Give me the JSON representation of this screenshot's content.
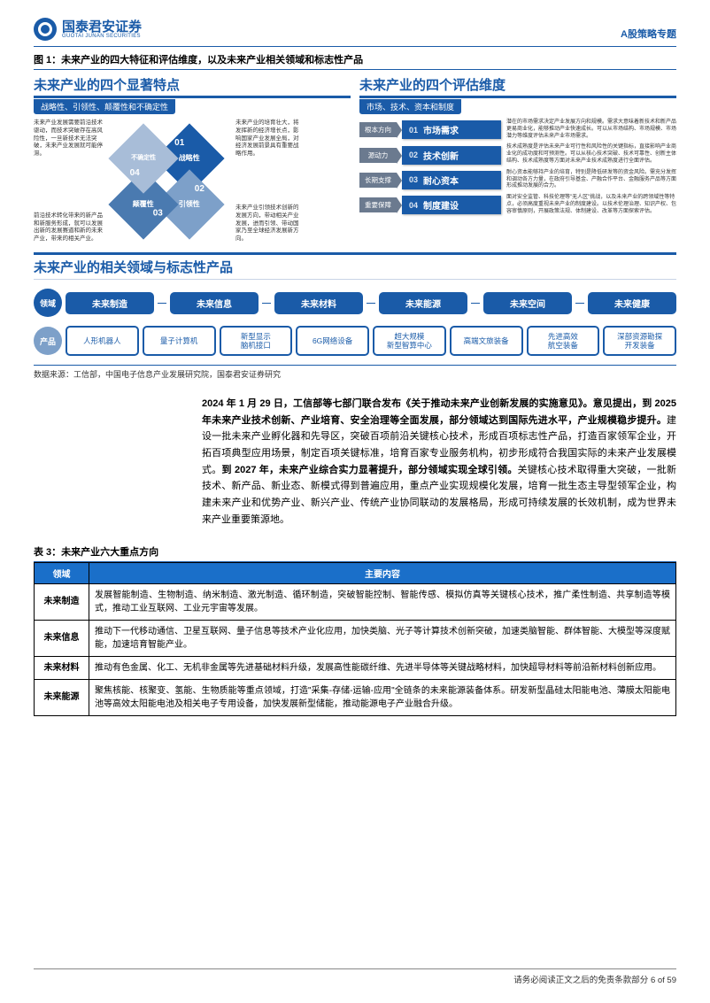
{
  "header": {
    "company_cn": "国泰君安证券",
    "company_en": "GUOTAI JUNAN SECURITIES",
    "right_label": "A股策略专题"
  },
  "fig1": {
    "title": "图 1：未来产业的四大特征和评估维度，以及未来产业相关领域和标志性产品",
    "left": {
      "title": "未来产业的四个显著特点",
      "subtitle": "战略性、引领性、颠覆性和不确定性",
      "text_tl": "未来产业发展需要前沿技术驱动，而技术突破存在高风险性，一旦新技术无法突破，未来产业发展就可能停滞。",
      "text_bl": "前沿技术转化带来的新产品和新服务形成，就可以发展出新的发展赛道和新的未来产业，带来的相关产业。",
      "text_tr": "未来产业的培育壮大，将发挥新的经济增长点，影响国家产业发展全局，对经济发展前景具有重要战略作用。",
      "text_br": "未来产业引领技术创新的发展方向，带动相关产业发展，进而引领、带动国家乃至全球经济发展新方向。",
      "diamond": {
        "n01": "01",
        "l01": "战略性",
        "n02": "02",
        "l02": "引领性",
        "n03": "03",
        "l03": "颠覆性",
        "n04": "04",
        "l04": "不确定性",
        "colors": {
          "p1": "#1a5ba8",
          "p2": "#7da0c9",
          "p3": "#4a7ab0",
          "p4": "#a8bdd8"
        }
      }
    },
    "right": {
      "title": "未来产业的四个评估维度",
      "subtitle": "市场、技术、资本和制度",
      "rows": [
        {
          "tag": "根本方向",
          "num": "01",
          "label": "市场需求",
          "desc": "潜在的市场需求决定产业发展方向和规模。需求大意味着新技术和新产品更易商业化，能够推动产业快速成长。可以从市场结构、市场规模、市场潜力等维度评估未来产业市场需求。"
        },
        {
          "tag": "源动力",
          "num": "02",
          "label": "技术创新",
          "desc": "技术成熟度是评估未来产业可行性和风险性的关键指标，直接影响产业商业化的成功度和可预测性。可以从核心技术突破、技术可靠性、创新主体结构、技术成熟度等方面对未来产业技术成熟度进行全面评估。"
        },
        {
          "tag": "长期支撑",
          "num": "03",
          "label": "耐心资本",
          "desc": "耐心资本能够持产业的培育，特别是降低研发等的资金风险。需充分发挥和调动各方力量，在政府引导基金、产融合作平台、金融服务产品等方面形成推动发展的合力。"
        },
        {
          "tag": "重要保障",
          "num": "04",
          "label": "制度建设",
          "desc": "面对安全监管、科技伦理等\"无人区\"挑战，以及未来产业的跨领域性等特点，必须高度重视未来产业的制度建设。以技术伦理治理、知识产权、包容审慎原则，开展政策法规、体制建设、改革等方面探索评估。"
        }
      ]
    },
    "domains": {
      "title": "未来产业的相关领域与标志性产品",
      "row_label_1": "领域",
      "row_label_2": "产品",
      "domain_list": [
        "未来制造",
        "未来信息",
        "未来材料",
        "未来能源",
        "未来空间",
        "未来健康"
      ],
      "product_list": [
        "人形机器人",
        "量子计算机",
        "新型显示\n脑机接口",
        "6G网络设备",
        "超大规模\n新型智算中心",
        "高端文旅装备",
        "先进高效\n航空装备",
        "深部资源勘探\n开发装备"
      ]
    },
    "source": "数据来源：工信部，中国电子信息产业发展研究院，国泰君安证券研究"
  },
  "body": {
    "p1": "2024 年 1 月 29 日，工信部等七部门联合发布《关于推动未来产业创新发展的实施意见》。意见提出，到 2025 年未来产业技术创新、产业培育、安全治理等全面发展，部分领域达到国际先进水平，产业规模稳步提升。",
    "p1b": "建设一批未来产业孵化器和先导区，突破百项前沿关键核心技术，形成百项标志性产品，打造百家领军企业，开拓百项典型应用场景，制定百项关键标准，培育百家专业服务机构，初步形成符合我国实际的未来产业发展模式。",
    "p2": "到 2027 年，未来产业综合实力显著提升，部分领域实现全球引领。",
    "p2b": "关键核心技术取得重大突破，一批新技术、新产品、新业态、新模式得到普遍应用，重点产业实现规模化发展，培育一批生态主导型领军企业，构建未来产业和优势产业、新兴产业、传统产业协同联动的发展格局，形成可持续发展的长效机制，成为世界未来产业重要策源地。"
  },
  "table3": {
    "title": "表 3：未来产业六大重点方向",
    "header": [
      "领域",
      "主要内容"
    ],
    "rows": [
      [
        "未来制造",
        "发展智能制造、生物制造、纳米制造、激光制造、循环制造，突破智能控制、智能传感、模拟仿真等关键核心技术，推广柔性制造、共享制造等模式，推动工业互联网、工业元宇宙等发展。"
      ],
      [
        "未来信息",
        "推动下一代移动通信、卫星互联网、量子信息等技术产业化应用，加快类脑、光子等计算技术创新突破，加速类脑智能、群体智能、大模型等深度赋能，加速培育智能产业。"
      ],
      [
        "未来材料",
        "推动有色金属、化工、无机非金属等先进基础材料升级，发展高性能碳纤维、先进半导体等关键战略材料，加快超导材料等前沿新材料创新应用。"
      ],
      [
        "未来能源",
        "聚焦核能、核聚变、氢能、生物质能等重点领域，打造\"采集-存储-运输-应用\"全链条的未来能源装备体系。研发新型晶硅太阳能电池、薄膜太阳能电池等高效太阳能电池及相关电子专用设备，加快发展新型储能，推动能源电子产业融合升级。"
      ]
    ]
  },
  "footer": {
    "text": "请务必阅读正文之后的免责条款部分",
    "page": "6 of 59"
  },
  "colors": {
    "brand": "#1a5ba8",
    "table_header": "#1a6fc9",
    "gray_tag": "#6b7a8f"
  }
}
